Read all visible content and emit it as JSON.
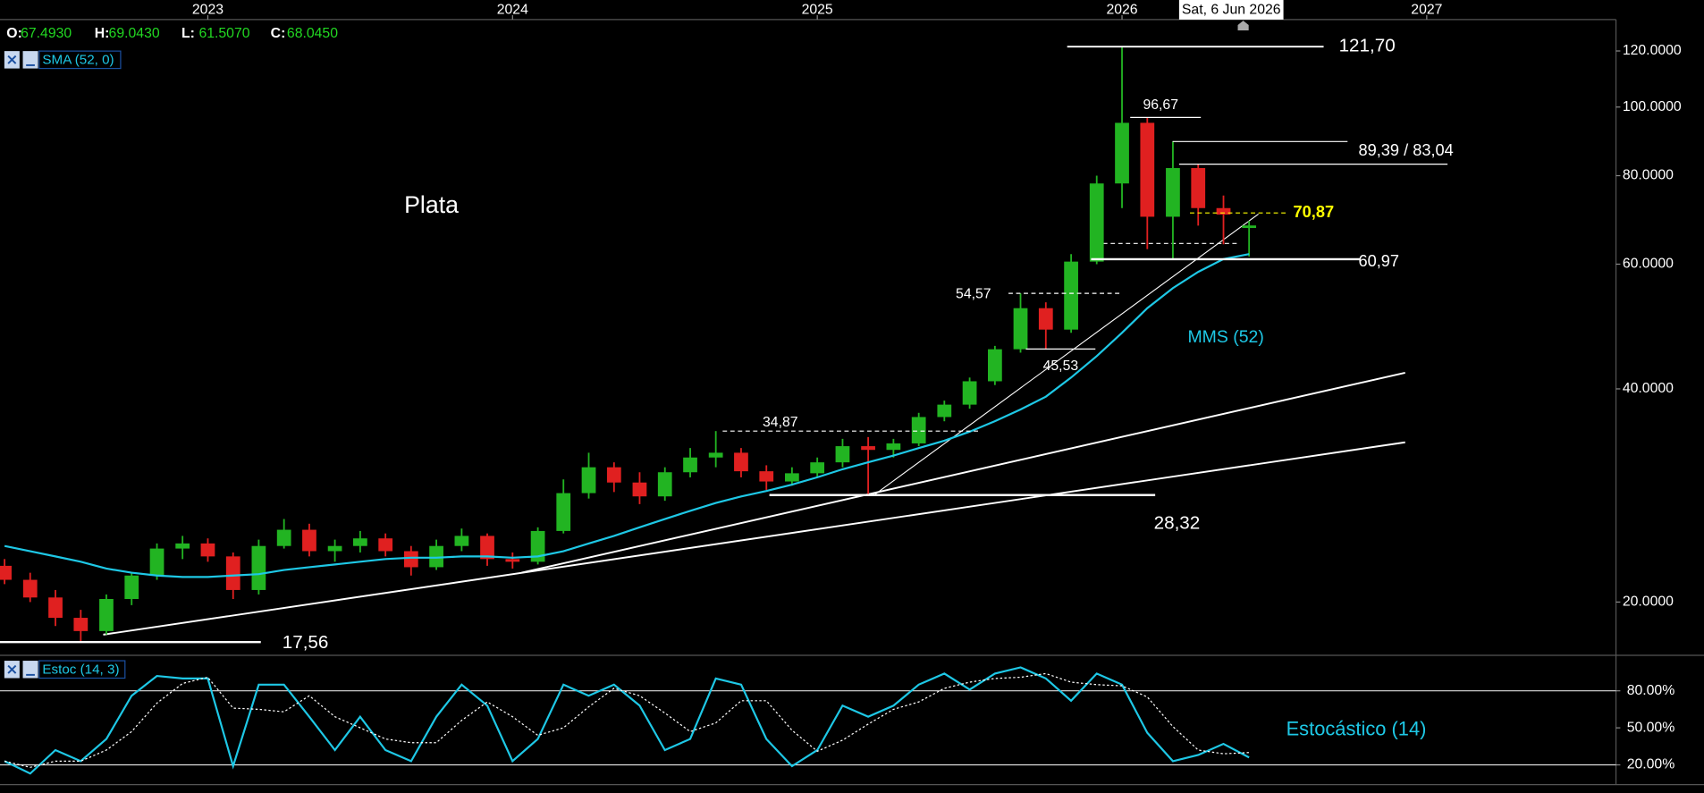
{
  "chart_data": [
    {
      "type": "candlestick",
      "title": "Plata",
      "cursor_date": "Sat, 6 Jun 2026",
      "ohlc_legend": [
        {
          "key": "O:",
          "value": "67.4930"
        },
        {
          "key": "H:",
          "value": "69.0430"
        },
        {
          "key": "L:",
          "value": "61.5070"
        },
        {
          "key": "C:",
          "value": "68.0450"
        }
      ],
      "x": [
        2022.333,
        2022.417,
        2022.5,
        2022.583,
        2022.667,
        2022.75,
        2022.833,
        2022.917,
        2023.0,
        2023.083,
        2023.167,
        2023.25,
        2023.333,
        2023.417,
        2023.5,
        2023.583,
        2023.667,
        2023.75,
        2023.833,
        2023.917,
        2024.0,
        2024.083,
        2024.167,
        2024.25,
        2024.333,
        2024.417,
        2024.5,
        2024.583,
        2024.667,
        2024.75,
        2024.833,
        2024.917,
        2025.0,
        2025.083,
        2025.167,
        2025.25,
        2025.333,
        2025.417,
        2025.5,
        2025.583,
        2025.667,
        2025.75,
        2025.833,
        2025.917,
        2026.0,
        2026.083,
        2026.167,
        2026.25,
        2026.333,
        2026.417
      ],
      "open": [
        22.5,
        21.5,
        20.3,
        19.0,
        18.2,
        20.2,
        21.8,
        23.8,
        24.2,
        23.2,
        20.8,
        24.0,
        25.3,
        23.6,
        24.0,
        24.6,
        23.6,
        22.4,
        24.0,
        24.8,
        23.0,
        22.8,
        25.2,
        28.5,
        31.0,
        29.5,
        28.2,
        30.5,
        32.0,
        32.5,
        30.6,
        29.6,
        30.4,
        31.5,
        33.2,
        32.8,
        33.5,
        36.5,
        38.0,
        41.0,
        45.5,
        52.0,
        48.5,
        60.5,
        78,
        95,
        70,
        82,
        72,
        67.493
      ],
      "high": [
        23,
        22,
        20.8,
        19.5,
        20.5,
        22,
        24.2,
        24.8,
        24.6,
        23.5,
        24.5,
        26.2,
        25.8,
        24.5,
        25.2,
        25.0,
        24.0,
        24.5,
        25.4,
        25.0,
        23.5,
        25.5,
        29.8,
        32.5,
        31.5,
        30.5,
        31.0,
        33.0,
        34.87,
        33.0,
        31.2,
        31.0,
        32.0,
        34.0,
        34.2,
        34.0,
        37.0,
        38.5,
        41.5,
        46.0,
        54.57,
        53.0,
        62,
        80,
        121.7,
        96.67,
        89.39,
        83.04,
        75,
        69.043
      ],
      "low": [
        21.2,
        20,
        18.5,
        17.56,
        18.0,
        19.8,
        21.5,
        23,
        22.8,
        20.2,
        20.5,
        23.8,
        23.2,
        22.8,
        23.5,
        23.2,
        21.8,
        22.2,
        23.6,
        22.5,
        22.3,
        22.6,
        25,
        28,
        28.6,
        27.5,
        27.8,
        30.0,
        31.0,
        30.0,
        28.8,
        29.2,
        30.0,
        31.0,
        28.32,
        32.0,
        33.2,
        36.0,
        37.5,
        40.5,
        45.0,
        45.53,
        48,
        60,
        72,
        63,
        60.97,
        68,
        64,
        61.507
      ],
      "close": [
        21.5,
        20.3,
        19.0,
        18.2,
        20.2,
        21.8,
        23.8,
        24.2,
        23.2,
        20.8,
        24.0,
        25.3,
        23.6,
        24.0,
        24.6,
        23.6,
        22.4,
        24.0,
        24.8,
        23.0,
        22.8,
        25.2,
        28.5,
        31.0,
        29.5,
        28.2,
        30.5,
        32.0,
        32.5,
        30.6,
        29.6,
        30.4,
        31.5,
        33.2,
        32.8,
        33.5,
        36.5,
        38.0,
        41.0,
        45.5,
        52.0,
        48.5,
        60.5,
        78,
        95,
        70,
        82,
        72,
        70.5,
        68.045
      ],
      "up_color": "#22b422",
      "down_color": "#e02020",
      "series": [
        {
          "name": "SMA (52, 0)",
          "color": "#1ec8e6",
          "line_label": "MMS (52)",
          "values": [
            24.0,
            23.6,
            23.2,
            22.8,
            22.3,
            22.0,
            21.8,
            21.7,
            21.7,
            21.8,
            21.9,
            22.2,
            22.4,
            22.6,
            22.8,
            23.0,
            23.1,
            23.1,
            23.2,
            23.2,
            23.1,
            23.2,
            23.6,
            24.2,
            24.8,
            25.5,
            26.2,
            26.9,
            27.6,
            28.2,
            28.7,
            29.3,
            30.0,
            30.8,
            31.5,
            32.2,
            33.0,
            33.8,
            34.8,
            36.0,
            37.4,
            39.0,
            41.5,
            44.5,
            48.0,
            52.0,
            55.5,
            58.5,
            61.0,
            62.0
          ]
        }
      ],
      "xlim": [
        2022.318,
        2027.621
      ],
      "xticks": [
        2023,
        2024,
        2025,
        2026,
        2027
      ],
      "ylim": [
        16.88,
        132.9
      ],
      "log_scale": true,
      "yticks": [
        {
          "value": 20,
          "label": "20.0000"
        },
        {
          "value": 40,
          "label": "40.0000"
        },
        {
          "value": 60,
          "label": "60.0000"
        },
        {
          "value": 80,
          "label": "80.0000"
        },
        {
          "value": 100,
          "label": "100.0000"
        },
        {
          "value": 120,
          "label": "120.0000"
        }
      ],
      "annotations": [
        {
          "values": [
            121.7
          ],
          "label": "121,70",
          "color": "#ffffff",
          "dashed": false
        },
        {
          "values": [
            96.67
          ],
          "label": "96,67",
          "color": "#ffffff",
          "dashed": false
        },
        {
          "values": [
            89.39,
            83.04
          ],
          "label": "89,39 / 83,04",
          "color": "#ffffff",
          "dashed": false
        },
        {
          "values": [
            70.87
          ],
          "label": "70,87",
          "color": "#ffff00",
          "dashed": true
        },
        {
          "values": [
            60.97
          ],
          "label": "60,97",
          "color": "#ffffff",
          "dashed": false
        },
        {
          "values": [
            54.57
          ],
          "label": "54,57",
          "color": "#ffffff",
          "dashed": true
        },
        {
          "values": [
            45.53
          ],
          "label": "45,53",
          "color": "#ffffff",
          "dashed": false
        },
        {
          "values": [
            34.87
          ],
          "label": "34,87",
          "color": "#ffffff",
          "dashed": true
        },
        {
          "values": [
            28.32
          ],
          "label": "28,32",
          "color": "#ffffff",
          "dashed": false
        },
        {
          "values": [
            17.56
          ],
          "label": "17,56",
          "color": "#ffffff",
          "dashed": false
        }
      ]
    },
    {
      "type": "stochastic",
      "title": "Estocástico (14)",
      "series": [
        {
          "name": "Estoc (14, 3)",
          "color": "#1ec8e6",
          "dotted": false,
          "values": [
            23,
            13,
            32,
            23,
            41,
            76,
            92,
            90,
            90,
            19,
            85,
            85,
            59,
            32,
            59,
            32,
            23,
            59,
            85,
            68,
            23,
            41,
            85,
            76,
            85,
            68,
            32,
            41,
            90,
            85,
            41,
            19,
            32,
            68,
            59,
            68,
            85,
            94,
            81,
            94,
            99,
            90,
            72,
            94,
            85,
            46,
            23,
            28,
            37,
            26
          ]
        },
        {
          "color": "#ffffff",
          "dotted": true,
          "values": [
            23,
            18,
            23,
            23,
            32,
            47,
            70,
            86,
            91,
            66,
            65,
            63,
            76,
            59,
            50,
            41,
            38,
            38,
            56,
            71,
            59,
            44,
            50,
            67,
            82,
            76,
            62,
            47,
            54,
            72,
            72,
            48,
            31,
            40,
            53,
            65,
            71,
            82,
            87,
            90,
            91,
            94,
            87,
            85,
            84,
            75,
            51,
            32,
            29,
            30
          ]
        }
      ],
      "ylim": [
        4,
        107
      ],
      "yticks": [
        {
          "value": 20,
          "label": "20.00%"
        },
        {
          "value": 50,
          "label": "50.00%"
        },
        {
          "value": 80,
          "label": "80.00%"
        }
      ],
      "hlines": [
        20,
        80
      ]
    }
  ]
}
